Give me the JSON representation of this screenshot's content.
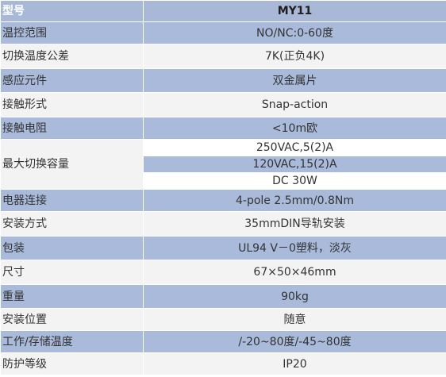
{
  "header": {
    "label": "型号",
    "value": "MY11"
  },
  "rows": [
    {
      "label": "温控范围",
      "value": "NO/NC:0-60度"
    },
    {
      "label": "切换温度公差",
      "value": "7K(正负4K)"
    },
    {
      "label": "感应元件",
      "value": "双金属片"
    },
    {
      "label": "接触形式",
      "value": "Snap-action"
    },
    {
      "label": "接触电阻",
      "value": "<10m欧"
    },
    {
      "label": "最大切换容量",
      "values": [
        "250VAC,5(2)A",
        "120VAC,15(2)A",
        "DC 30W"
      ]
    },
    {
      "label": "电器连接",
      "value": "4-pole 2.5mm/0.8Nm"
    },
    {
      "label": "安装方式",
      "value": "35mmDIN导轨安装"
    },
    {
      "label": "包装",
      "value": "UL94 V－0塑料，淡灰"
    },
    {
      "label": "尺寸",
      "value": "67×50×46mm"
    },
    {
      "label": "重量",
      "value": "90kg"
    },
    {
      "label": "安装位置",
      "value": "随意"
    },
    {
      "label": "工作/存储温度",
      "value": "/-20~80度/-45~80度"
    },
    {
      "label": "防护等级",
      "value": "IP20"
    }
  ],
  "colors": {
    "band_blue": "#a9badb",
    "band_light": "#f3f3f3",
    "text": "#333333"
  }
}
